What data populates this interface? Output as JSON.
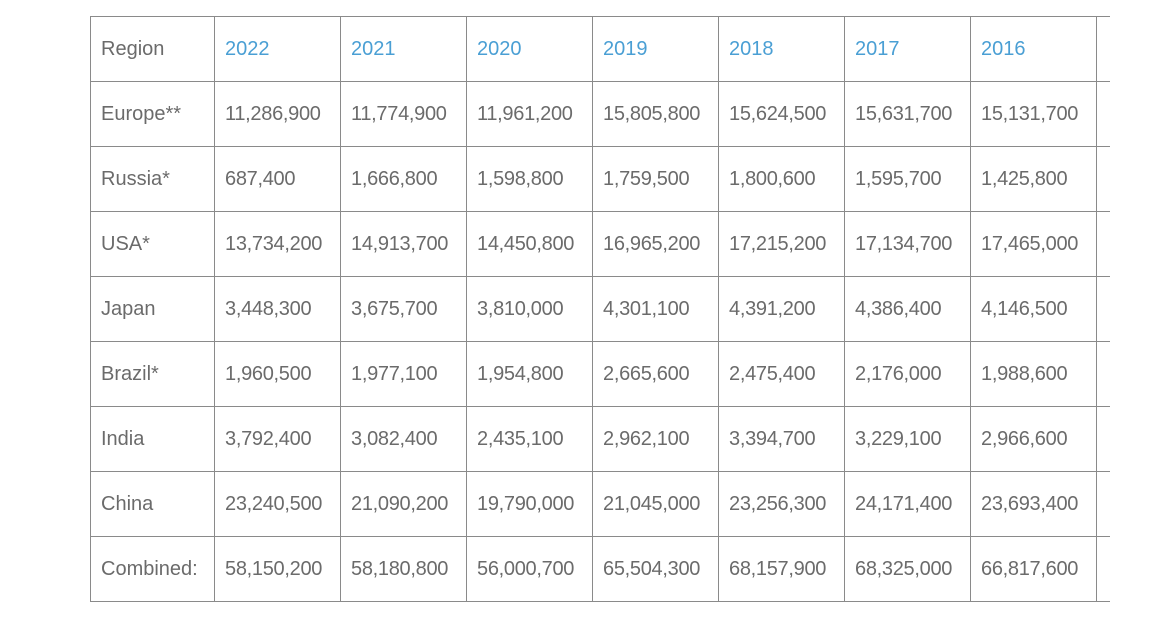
{
  "table": {
    "header_region": "Region",
    "years": [
      "2022",
      "2021",
      "2020",
      "2019",
      "2018",
      "2017",
      "2016"
    ],
    "rows": [
      {
        "region": "Europe**",
        "values": [
          "11,286,900",
          "11,774,900",
          "11,961,200",
          "15,805,800",
          "15,624,500",
          "15,631,700",
          "15,131,700"
        ]
      },
      {
        "region": "Russia*",
        "values": [
          "687,400",
          "1,666,800",
          "1,598,800",
          "1,759,500",
          "1,800,600",
          "1,595,700",
          "1,425,800"
        ]
      },
      {
        "region": "USA*",
        "values": [
          "13,734,200",
          "14,913,700",
          "14,450,800",
          "16,965,200",
          "17,215,200",
          "17,134,700",
          "17,465,000"
        ]
      },
      {
        "region": "Japan",
        "values": [
          "3,448,300",
          "3,675,700",
          "3,810,000",
          "4,301,100",
          "4,391,200",
          "4,386,400",
          "4,146,500"
        ]
      },
      {
        "region": "Brazil*",
        "values": [
          "1,960,500",
          "1,977,100",
          "1,954,800",
          "2,665,600",
          "2,475,400",
          "2,176,000",
          "1,988,600"
        ]
      },
      {
        "region": "India",
        "values": [
          "3,792,400",
          "3,082,400",
          "2,435,100",
          "2,962,100",
          "3,394,700",
          "3,229,100",
          "2,966,600"
        ]
      },
      {
        "region": "China",
        "values": [
          "23,240,500",
          "21,090,200",
          "19,790,000",
          "21,045,000",
          "23,256,300",
          "24,171,400",
          "23,693,400"
        ]
      },
      {
        "region": "Combined:",
        "values": [
          "58,150,200",
          "58,180,800",
          "56,000,700",
          "65,504,300",
          "68,157,900",
          "68,325,000",
          "66,817,600"
        ]
      }
    ]
  },
  "colors": {
    "year_header": "#4a9fd4",
    "text": "#6b6b6b",
    "border": "#8a8a8a"
  }
}
